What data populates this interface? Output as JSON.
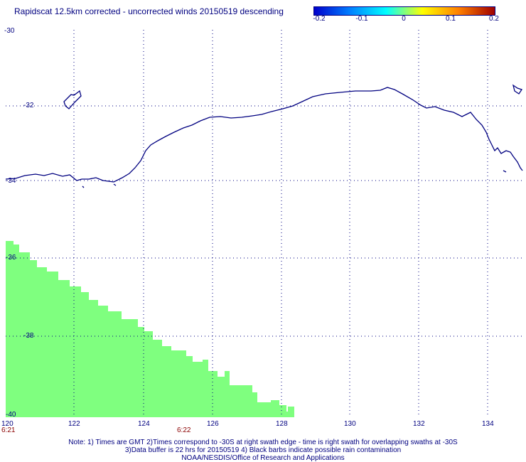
{
  "title": "Rapidscat 12.5km corrected - uncorrected winds 20150519 descending",
  "colorbar": {
    "labels": [
      "-0.2",
      "-0.1",
      "0",
      "0.1",
      "0.2"
    ],
    "colors": [
      "#0000cc",
      "#0080ff",
      "#00ffff",
      "#ffff00",
      "#ff8000",
      "#a00000"
    ]
  },
  "map": {
    "lat_labels": [
      "-30",
      "-32",
      "-34",
      "-36",
      "-38",
      "-40"
    ],
    "lon_labels": [
      "120",
      "122",
      "124",
      "126",
      "128",
      "130",
      "132",
      "134"
    ],
    "lon_range": [
      120,
      135
    ],
    "lat_range": [
      -40,
      -30
    ],
    "grid": "dotted",
    "coastline_color": "#000080",
    "swath_color": "#7fff7f",
    "swath_value": "0"
  },
  "times": [
    "6:21",
    "6:22"
  ],
  "notes": [
    "Note: 1) Times are GMT 2)Times correspond to -30S at right swath edge - time is right swath for overlapping swaths at -30S",
    "3)Data buffer is 22 hrs for 20150519 4) Black barbs indicate possible rain contamination",
    "NOAA/NESDIS/Office of Research and Applications"
  ]
}
